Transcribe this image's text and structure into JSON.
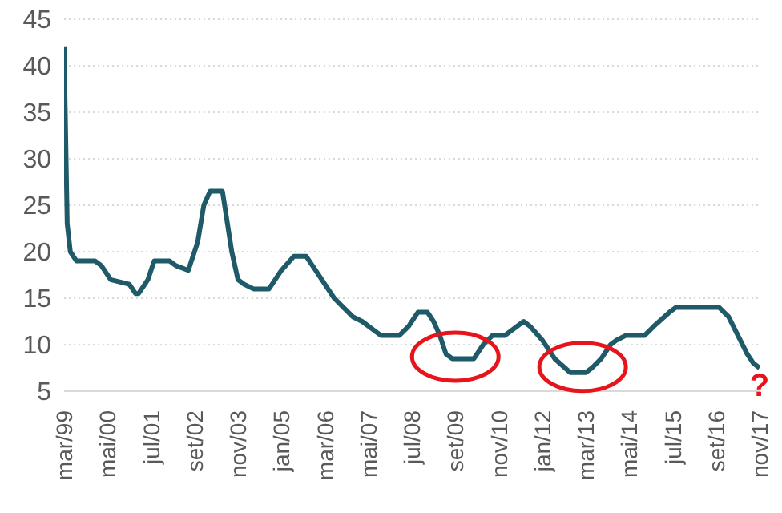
{
  "chart_data": {
    "type": "line",
    "x": [
      "1999-03",
      "1999-04",
      "1999-05",
      "1999-06",
      "1999-07",
      "2000-01",
      "2000-03",
      "2000-06",
      "2000-12",
      "2001-02",
      "2001-03",
      "2001-06",
      "2001-08",
      "2002-01",
      "2002-03",
      "2002-07",
      "2002-10",
      "2002-12",
      "2003-02",
      "2003-06",
      "2003-09",
      "2003-11",
      "2004-01",
      "2004-04",
      "2004-09",
      "2005-01",
      "2005-05",
      "2005-09",
      "2005-12",
      "2006-03",
      "2006-06",
      "2006-09",
      "2006-12",
      "2007-03",
      "2007-07",
      "2007-09",
      "2008-03",
      "2008-06",
      "2008-09",
      "2008-12",
      "2009-02",
      "2009-04",
      "2009-06",
      "2009-08",
      "2010-03",
      "2010-06",
      "2010-09",
      "2011-01",
      "2011-07",
      "2011-09",
      "2012-01",
      "2012-05",
      "2012-10",
      "2013-03",
      "2013-05",
      "2013-08",
      "2013-11",
      "2014-01",
      "2014-04",
      "2014-10",
      "2015-01",
      "2015-06",
      "2015-08",
      "2016-10",
      "2017-01",
      "2017-04",
      "2017-07",
      "2017-09",
      "2017-11"
    ],
    "series": [
      {
        "color": "#1f5a68",
        "values": [
          42,
          23,
          20,
          19.5,
          19,
          19,
          18.5,
          17,
          16.5,
          15.5,
          15.5,
          17,
          19,
          19,
          18.5,
          18,
          21,
          25,
          26.5,
          26.5,
          20,
          17,
          16.5,
          16,
          16,
          18,
          19.5,
          19.5,
          18,
          16.5,
          15,
          14,
          13,
          12.5,
          11.5,
          11,
          11,
          12,
          13.5,
          13.5,
          12.5,
          11,
          9,
          8.5,
          8.5,
          10,
          11,
          11,
          12.5,
          12,
          10.5,
          8.5,
          7,
          7,
          7.5,
          8.5,
          10,
          10.5,
          11,
          11,
          12,
          13.5,
          14,
          14,
          13,
          11,
          9,
          8,
          7.5
        ]
      }
    ],
    "xlim": [
      "1999-03",
      "2017-11"
    ],
    "xticks": [
      {
        "value": "1999-03",
        "label": "mar/99"
      },
      {
        "value": "2000-05",
        "label": "mai/00"
      },
      {
        "value": "2001-07",
        "label": "jul/01"
      },
      {
        "value": "2002-09",
        "label": "set/02"
      },
      {
        "value": "2003-11",
        "label": "nov/03"
      },
      {
        "value": "2005-01",
        "label": "jan/05"
      },
      {
        "value": "2006-03",
        "label": "mar/06"
      },
      {
        "value": "2007-05",
        "label": "mai/07"
      },
      {
        "value": "2008-07",
        "label": "jul/08"
      },
      {
        "value": "2009-09",
        "label": "set/09"
      },
      {
        "value": "2010-11",
        "label": "nov/10"
      },
      {
        "value": "2012-01",
        "label": "jan/12"
      },
      {
        "value": "2013-03",
        "label": "mar/13"
      },
      {
        "value": "2014-05",
        "label": "mai/14"
      },
      {
        "value": "2015-07",
        "label": "jul/15"
      },
      {
        "value": "2016-09",
        "label": "set/16"
      },
      {
        "value": "2017-11",
        "label": "nov/17"
      }
    ],
    "ylim": [
      5,
      45
    ],
    "yticks": [
      5,
      10,
      15,
      20,
      25,
      30,
      35,
      40,
      45
    ],
    "grid": "y",
    "marker": "none",
    "line_style": "solid",
    "annotations": [
      "?"
    ]
  }
}
